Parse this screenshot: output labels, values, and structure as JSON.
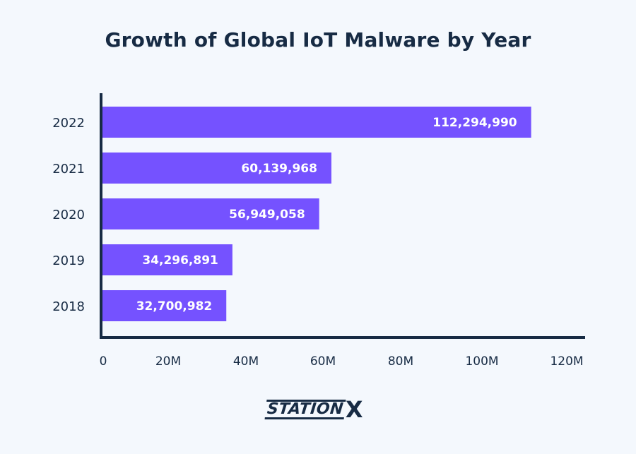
{
  "chart_data": {
    "type": "bar",
    "orientation": "horizontal",
    "title": "Growth of Global IoT Malware by Year",
    "categories": [
      "2022",
      "2021",
      "2020",
      "2019",
      "2018"
    ],
    "values": [
      112294990,
      60139968,
      56949058,
      34296891,
      32700982
    ],
    "value_labels": [
      "112,294,990",
      "60,139,968",
      "56,949,058",
      "34,296,891",
      "32,700,982"
    ],
    "xlim": [
      0,
      120000000
    ],
    "x_ticks": [
      0,
      20000000,
      40000000,
      60000000,
      80000000,
      100000000,
      120000000
    ],
    "x_tick_labels": [
      "0",
      "20M",
      "40M",
      "60M",
      "80M",
      "100M",
      "120M"
    ],
    "xlabel": "",
    "ylabel": "",
    "grid": false,
    "bar_color": "#7552ff",
    "axis_color": "#172b44",
    "label_color": "#ffffff",
    "text_color": "#172b44"
  },
  "branding": {
    "logo_text": "STATION",
    "logo_mark": "X"
  }
}
